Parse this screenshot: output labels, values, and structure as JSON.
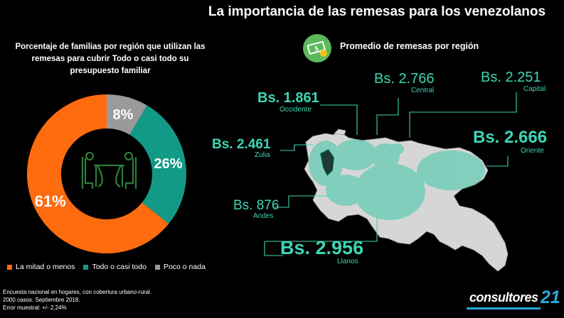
{
  "title": "La importancia de las remesas para los venezolanos",
  "donut_title": "Porcentaje de familias por región que utilizan las remesas para cubrir Todo o casi todo su presupuesto familiar",
  "map_heading": "Promedio de remesas por región",
  "chart_data": [
    {
      "type": "pie",
      "title": "Porcentaje de familias por región que utilizan las remesas para cubrir Todo o casi todo su presupuesto familiar",
      "categories": [
        "La mitad o menos",
        "Todo o casi todo",
        "Poco o nada"
      ],
      "values": [
        61,
        26,
        8
      ],
      "labels": [
        "61%",
        "26%",
        "8%"
      ],
      "colors": [
        "#ff6b0f",
        "#129a86",
        "#9a9a9a"
      ],
      "legend_position": "bottom"
    },
    {
      "type": "table",
      "title": "Promedio de remesas por región",
      "regions": [
        {
          "name": "Occidente",
          "value": "Bs. 1.861"
        },
        {
          "name": "Central",
          "value": "Bs. 2.766"
        },
        {
          "name": "Capital",
          "value": "Bs. 2.251"
        },
        {
          "name": "Zulia",
          "value": "Bs. 2.461"
        },
        {
          "name": "Oriente",
          "value": "Bs. 2.666"
        },
        {
          "name": "Andes",
          "value": "Bs. 876"
        },
        {
          "name": "Llanos",
          "value": "Bs. 2.956"
        }
      ]
    }
  ],
  "legend": [
    {
      "label": "La mitad o menos",
      "color": "#ff6b0f"
    },
    {
      "label": "Todo o casi todo",
      "color": "#129a86"
    },
    {
      "label": "Poco o nada",
      "color": "#9a9a9a"
    }
  ],
  "footnote": [
    "Encuesta nacional en hogares,  con cobertura urbano-rural.",
    "2000 casos. Septiembre 2018.",
    "Error muestral: +/- 2,24%"
  ],
  "logo": {
    "text": "consultores",
    "number": "21"
  },
  "icons": {
    "center": "dining-table-icon",
    "money": "money-bill-icon"
  }
}
